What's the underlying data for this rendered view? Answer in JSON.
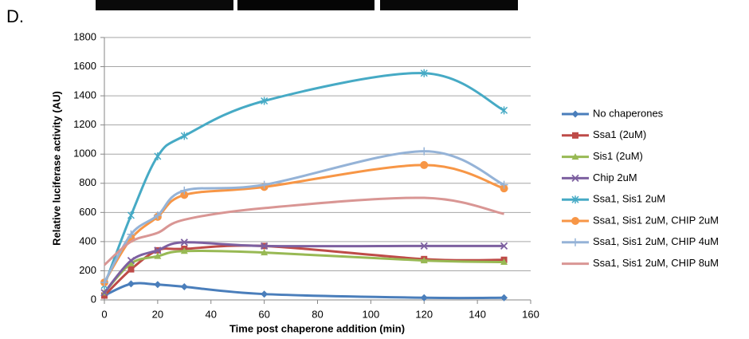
{
  "panel_label": "D.",
  "chart_data": {
    "type": "line",
    "x_label": "Time post chaperone addition (min)",
    "y_label": "Relative luciferase activity (AU)",
    "x": [
      0,
      10,
      20,
      30,
      60,
      120,
      150
    ],
    "xlim": [
      0,
      160
    ],
    "xticks": [
      0,
      20,
      40,
      60,
      80,
      100,
      120,
      140,
      160
    ],
    "ylim": [
      0,
      1800
    ],
    "yticks": [
      0,
      200,
      400,
      600,
      800,
      1000,
      1200,
      1400,
      1600,
      1800
    ],
    "grid": true,
    "smooth": true,
    "legend": "right",
    "series": [
      {
        "name": "No chaperones",
        "color": "#4a7ebb",
        "marker": "diamond",
        "values": [
          30,
          110,
          105,
          90,
          40,
          15,
          15
        ]
      },
      {
        "name": "Ssa1 (2uM)",
        "color": "#be4b48",
        "marker": "square",
        "values": [
          30,
          210,
          340,
          350,
          370,
          280,
          275
        ]
      },
      {
        "name": "Sis1 (2uM)",
        "color": "#98b954",
        "marker": "triangle",
        "values": [
          50,
          250,
          300,
          335,
          325,
          270,
          260
        ]
      },
      {
        "name": "Chip 2uM",
        "color": "#7d60a0",
        "marker": "cross",
        "values": [
          50,
          270,
          340,
          395,
          370,
          370,
          370
        ]
      },
      {
        "name": "Ssa1, Sis1 2uM",
        "color": "#46aac5",
        "marker": "star",
        "values": [
          100,
          580,
          985,
          1125,
          1365,
          1555,
          1300
        ]
      },
      {
        "name": "Ssa1, Sis1 2uM, CHIP 2uM",
        "color": "#f79646",
        "marker": "circle",
        "values": [
          120,
          420,
          570,
          720,
          775,
          925,
          765
        ]
      },
      {
        "name": "Ssa1, Sis1 2uM, CHIP 4uM",
        "color": "#95b3d7",
        "marker": "plus",
        "values": [
          120,
          450,
          580,
          750,
          790,
          1020,
          790
        ]
      },
      {
        "name": "Ssa1, Sis1 2uM, CHIP 8uM",
        "color": "#d99694",
        "marker": "none",
        "values": [
          240,
          400,
          460,
          550,
          630,
          700,
          590
        ]
      }
    ]
  }
}
